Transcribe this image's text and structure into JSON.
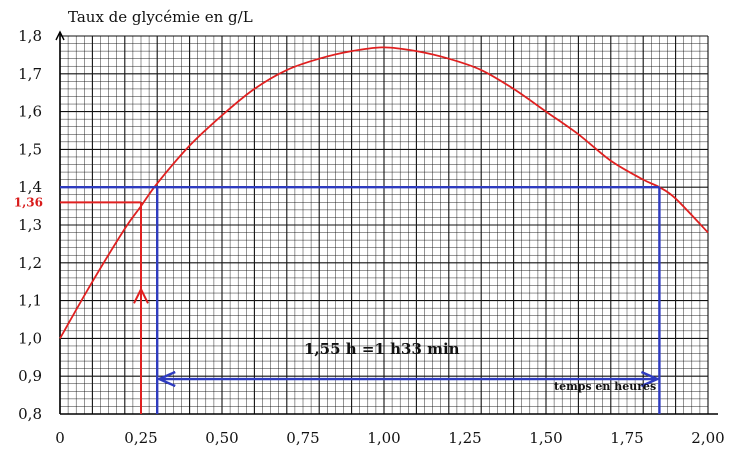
{
  "chart_data": {
    "type": "line",
    "title": "Taux de glycémie en g/L",
    "xlabel": "temps en heures",
    "ylabel": "Taux de glycémie en g/L",
    "xlim": [
      0,
      2.0
    ],
    "ylim": [
      0.8,
      1.8
    ],
    "x_ticks": [
      "0",
      "0,25",
      "0,50",
      "0,75",
      "1,00",
      "1,25",
      "1,50",
      "1,75",
      "2,00"
    ],
    "x_tick_values": [
      0,
      0.25,
      0.5,
      0.75,
      1.0,
      1.25,
      1.5,
      1.75,
      2.0
    ],
    "y_ticks": [
      "0,8",
      "0,9",
      "1,0",
      "1,1",
      "1,2",
      "1,3",
      "1,4",
      "1,5",
      "1,6",
      "1,7",
      "1,8"
    ],
    "y_tick_values": [
      0.8,
      0.9,
      1.0,
      1.1,
      1.2,
      1.3,
      1.4,
      1.5,
      1.6,
      1.7,
      1.8
    ],
    "grid": true,
    "series": [
      {
        "color": "#e02020",
        "x": [
          0,
          0.1,
          0.2,
          0.25,
          0.3,
          0.4,
          0.5,
          0.6,
          0.7,
          0.8,
          0.9,
          1.0,
          1.1,
          1.2,
          1.3,
          1.4,
          1.5,
          1.6,
          1.7,
          1.8,
          1.85,
          1.9,
          2.0
        ],
        "y": [
          1.0,
          1.15,
          1.29,
          1.35,
          1.41,
          1.51,
          1.59,
          1.66,
          1.71,
          1.74,
          1.76,
          1.77,
          1.76,
          1.74,
          1.71,
          1.66,
          1.6,
          1.54,
          1.47,
          1.42,
          1.4,
          1.37,
          1.28
        ]
      }
    ],
    "annotations": {
      "level_value": "1,36",
      "level_y": 1.36,
      "level_x": 0.25,
      "threshold_y": 1.4,
      "threshold_x_start": 0.3,
      "threshold_x_end": 1.85,
      "duration_text": "1,55 h =1 h33 min",
      "axis_text": "temps en heures",
      "red_color": "#e02020",
      "blue_color": "#2e3bbf"
    }
  }
}
